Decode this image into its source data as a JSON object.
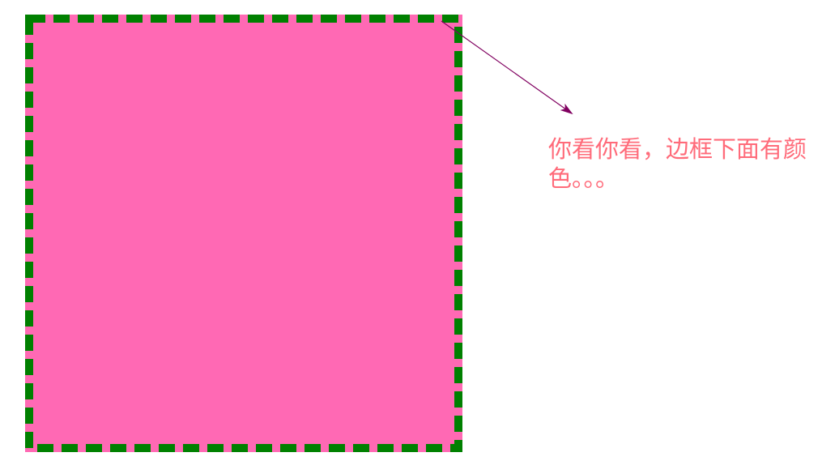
{
  "colors": {
    "fill": "#ff69b4",
    "border": "#008000",
    "arrow": "#800060",
    "note_text": "#ff6b7a",
    "background": "#ffffff"
  },
  "annotation": {
    "text": "你看你看，边框下面有颜色。。。"
  }
}
